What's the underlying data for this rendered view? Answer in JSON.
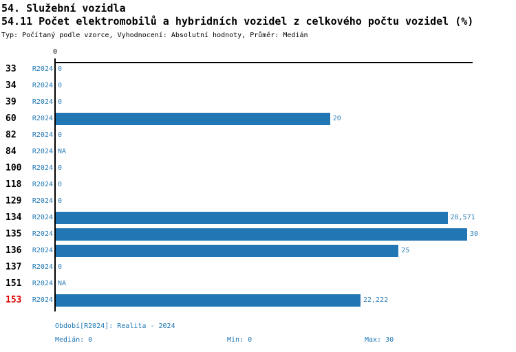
{
  "header": {
    "title": "54. Služební vozidla",
    "subtitle": "54.11 Počet elektromobilů a hybridních vozidel z celkového počtu vozidel (%)",
    "meta": "Typ: Počítaný podle vzorce, Vyhodnocení: Absolutní hodnoty, Průměr: Medián"
  },
  "axis": {
    "tick_label": "0"
  },
  "colors": {
    "bar": "#2276b4",
    "text_blue": "#1f77b4",
    "highlight_red": "#dd0000",
    "axis_black": "#000000",
    "background": "#ffffff"
  },
  "chart_data": {
    "type": "bar",
    "orientation": "horizontal",
    "title": "54.11 Počet elektromobilů a hybridních vozidel z celkového počtu vozidel (%)",
    "series_name": "R2024",
    "xlim": [
      0,
      30
    ],
    "grid": false,
    "categories": [
      "33",
      "34",
      "39",
      "60",
      "82",
      "84",
      "100",
      "118",
      "129",
      "134",
      "135",
      "136",
      "137",
      "151",
      "153"
    ],
    "rows": [
      {
        "id": "33",
        "period": "R2024",
        "value": 0,
        "label": "0"
      },
      {
        "id": "34",
        "period": "R2024",
        "value": 0,
        "label": "0"
      },
      {
        "id": "39",
        "period": "R2024",
        "value": 0,
        "label": "0"
      },
      {
        "id": "60",
        "period": "R2024",
        "value": 20,
        "label": "20"
      },
      {
        "id": "82",
        "period": "R2024",
        "value": 0,
        "label": "0"
      },
      {
        "id": "84",
        "period": "R2024",
        "value": null,
        "label": "NA"
      },
      {
        "id": "100",
        "period": "R2024",
        "value": 0,
        "label": "0"
      },
      {
        "id": "118",
        "period": "R2024",
        "value": 0,
        "label": "0"
      },
      {
        "id": "129",
        "period": "R2024",
        "value": 0,
        "label": "0"
      },
      {
        "id": "134",
        "period": "R2024",
        "value": 28.571,
        "label": "28,571"
      },
      {
        "id": "135",
        "period": "R2024",
        "value": 30,
        "label": "30"
      },
      {
        "id": "136",
        "period": "R2024",
        "value": 25,
        "label": "25"
      },
      {
        "id": "137",
        "period": "R2024",
        "value": 0,
        "label": "0"
      },
      {
        "id": "151",
        "period": "R2024",
        "value": null,
        "label": "NA"
      },
      {
        "id": "153",
        "period": "R2024",
        "value": 22.222,
        "label": "22,222",
        "highlight": true
      }
    ]
  },
  "footer": {
    "period": "Období[R2024]: Realita - 2024",
    "median": "Medián: 0",
    "min": "Min: 0",
    "max": "Max: 30"
  }
}
